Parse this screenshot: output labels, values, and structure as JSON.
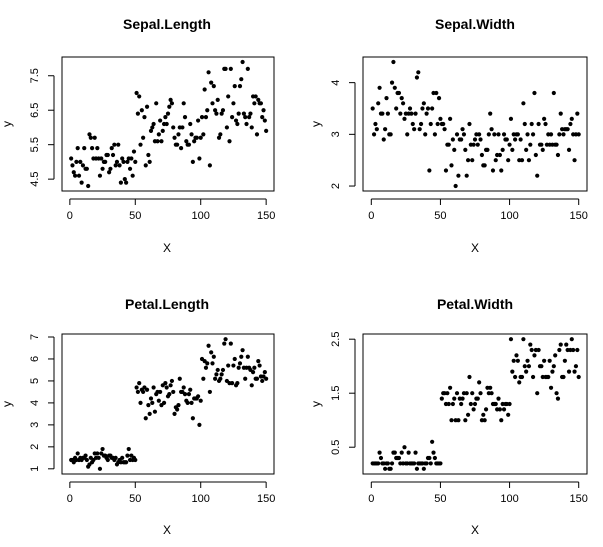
{
  "chart_data": [
    {
      "type": "scatter",
      "title": "Sepal.Length",
      "xlabel": "X",
      "ylabel": "y",
      "xlim": [
        0,
        150
      ],
      "ylim": [
        4.3,
        7.9
      ],
      "xticks": [
        0,
        50,
        100,
        150
      ],
      "yticks": [
        4.5,
        5.5,
        6.5,
        7.5
      ],
      "grid": false,
      "x": [
        1,
        2,
        3,
        4,
        5,
        6,
        7,
        8,
        9,
        10,
        11,
        12,
        13,
        14,
        15,
        16,
        17,
        18,
        19,
        20,
        21,
        22,
        23,
        24,
        25,
        26,
        27,
        28,
        29,
        30,
        31,
        32,
        33,
        34,
        35,
        36,
        37,
        38,
        39,
        40,
        41,
        42,
        43,
        44,
        45,
        46,
        47,
        48,
        49,
        50,
        51,
        52,
        53,
        54,
        55,
        56,
        57,
        58,
        59,
        60,
        61,
        62,
        63,
        64,
        65,
        66,
        67,
        68,
        69,
        70,
        71,
        72,
        73,
        74,
        75,
        76,
        77,
        78,
        79,
        80,
        81,
        82,
        83,
        84,
        85,
        86,
        87,
        88,
        89,
        90,
        91,
        92,
        93,
        94,
        95,
        96,
        97,
        98,
        99,
        100,
        101,
        102,
        103,
        104,
        105,
        106,
        107,
        108,
        109,
        110,
        111,
        112,
        113,
        114,
        115,
        116,
        117,
        118,
        119,
        120,
        121,
        122,
        123,
        124,
        125,
        126,
        127,
        128,
        129,
        130,
        131,
        132,
        133,
        134,
        135,
        136,
        137,
        138,
        139,
        140,
        141,
        142,
        143,
        144,
        145,
        146,
        147,
        148,
        149,
        150
      ],
      "y": [
        5.1,
        4.9,
        4.7,
        4.6,
        5.0,
        5.4,
        4.6,
        5.0,
        4.4,
        4.9,
        5.4,
        4.8,
        4.8,
        4.3,
        5.8,
        5.7,
        5.4,
        5.1,
        5.7,
        5.1,
        5.4,
        5.1,
        4.6,
        5.1,
        4.8,
        5.0,
        5.0,
        5.2,
        5.2,
        4.7,
        4.8,
        5.4,
        5.2,
        5.5,
        4.9,
        5.0,
        5.5,
        4.9,
        4.4,
        5.1,
        5.0,
        4.5,
        4.4,
        5.0,
        5.1,
        4.8,
        5.1,
        4.6,
        5.3,
        5.0,
        7.0,
        6.4,
        6.9,
        5.5,
        6.5,
        5.7,
        6.3,
        4.9,
        6.6,
        5.2,
        5.0,
        5.9,
        6.0,
        6.1,
        5.6,
        6.7,
        5.6,
        5.8,
        6.2,
        5.6,
        5.9,
        6.1,
        6.3,
        6.1,
        6.4,
        6.6,
        6.8,
        6.7,
        6.0,
        5.7,
        5.5,
        5.5,
        5.8,
        6.0,
        5.4,
        6.0,
        6.7,
        6.3,
        5.6,
        5.5,
        5.5,
        6.1,
        5.8,
        5.0,
        5.6,
        5.7,
        5.7,
        6.2,
        5.1,
        5.7,
        6.3,
        5.8,
        7.1,
        6.3,
        6.5,
        7.6,
        4.9,
        7.3,
        6.7,
        7.2,
        6.5,
        6.4,
        6.8,
        5.7,
        5.8,
        6.4,
        6.5,
        7.7,
        7.7,
        6.0,
        6.9,
        5.6,
        7.7,
        6.3,
        6.7,
        7.2,
        6.2,
        6.1,
        6.4,
        7.2,
        7.4,
        7.9,
        6.4,
        6.3,
        6.1,
        7.7,
        6.3,
        6.4,
        6.0,
        6.9,
        6.7,
        6.9,
        5.8,
        6.8,
        6.7,
        6.7,
        6.3,
        6.5,
        6.2,
        5.9
      ]
    },
    {
      "type": "scatter",
      "title": "Sepal.Width",
      "xlabel": "X",
      "ylabel": "y",
      "xlim": [
        0,
        150
      ],
      "ylim": [
        2.0,
        4.4
      ],
      "xticks": [
        0,
        50,
        100,
        150
      ],
      "yticks": [
        2.0,
        3.0,
        4.0
      ],
      "grid": false,
      "x": [
        1,
        2,
        3,
        4,
        5,
        6,
        7,
        8,
        9,
        10,
        11,
        12,
        13,
        14,
        15,
        16,
        17,
        18,
        19,
        20,
        21,
        22,
        23,
        24,
        25,
        26,
        27,
        28,
        29,
        30,
        31,
        32,
        33,
        34,
        35,
        36,
        37,
        38,
        39,
        40,
        41,
        42,
        43,
        44,
        45,
        46,
        47,
        48,
        49,
        50,
        51,
        52,
        53,
        54,
        55,
        56,
        57,
        58,
        59,
        60,
        61,
        62,
        63,
        64,
        65,
        66,
        67,
        68,
        69,
        70,
        71,
        72,
        73,
        74,
        75,
        76,
        77,
        78,
        79,
        80,
        81,
        82,
        83,
        84,
        85,
        86,
        87,
        88,
        89,
        90,
        91,
        92,
        93,
        94,
        95,
        96,
        97,
        98,
        99,
        100,
        101,
        102,
        103,
        104,
        105,
        106,
        107,
        108,
        109,
        110,
        111,
        112,
        113,
        114,
        115,
        116,
        117,
        118,
        119,
        120,
        121,
        122,
        123,
        124,
        125,
        126,
        127,
        128,
        129,
        130,
        131,
        132,
        133,
        134,
        135,
        136,
        137,
        138,
        139,
        140,
        141,
        142,
        143,
        144,
        145,
        146,
        147,
        148,
        149,
        150
      ],
      "y": [
        3.5,
        3.0,
        3.2,
        3.1,
        3.6,
        3.9,
        3.4,
        3.4,
        2.9,
        3.1,
        3.7,
        3.4,
        3.0,
        3.0,
        4.0,
        4.4,
        3.9,
        3.5,
        3.8,
        3.8,
        3.4,
        3.7,
        3.6,
        3.3,
        3.4,
        3.0,
        3.4,
        3.5,
        3.4,
        3.2,
        3.1,
        3.4,
        4.1,
        4.2,
        3.1,
        3.2,
        3.5,
        3.6,
        3.0,
        3.4,
        3.5,
        2.3,
        3.2,
        3.5,
        3.8,
        3.0,
        3.8,
        3.2,
        3.7,
        3.3,
        3.2,
        3.2,
        3.1,
        2.3,
        2.8,
        2.8,
        3.3,
        2.4,
        2.9,
        2.7,
        2.0,
        3.0,
        2.2,
        2.9,
        2.9,
        3.1,
        3.0,
        2.7,
        2.2,
        2.5,
        3.2,
        2.8,
        2.5,
        2.8,
        2.9,
        3.0,
        2.8,
        3.0,
        2.9,
        2.6,
        2.4,
        2.4,
        2.7,
        2.7,
        3.0,
        3.4,
        3.1,
        2.3,
        3.0,
        2.5,
        2.6,
        3.0,
        2.6,
        2.3,
        2.7,
        3.0,
        2.9,
        2.9,
        2.5,
        2.8,
        3.3,
        2.7,
        3.0,
        2.9,
        3.0,
        3.0,
        2.5,
        2.9,
        2.5,
        3.6,
        3.2,
        2.7,
        3.0,
        2.5,
        2.8,
        3.2,
        3.0,
        3.8,
        2.6,
        2.2,
        3.2,
        2.8,
        2.8,
        2.7,
        3.3,
        3.2,
        2.8,
        3.0,
        2.8,
        3.0,
        2.8,
        3.8,
        2.8,
        2.8,
        2.6,
        3.0,
        3.4,
        3.1,
        3.0,
        3.1,
        3.1,
        3.1,
        2.7,
        3.2,
        3.3,
        3.0,
        2.5,
        3.0,
        3.4,
        3.0
      ]
    },
    {
      "type": "scatter",
      "title": "Petal.Length",
      "xlabel": "X",
      "ylabel": "y",
      "xlim": [
        0,
        150
      ],
      "ylim": [
        1.0,
        6.9
      ],
      "xticks": [
        0,
        50,
        100,
        150
      ],
      "yticks": [
        1,
        2,
        3,
        4,
        5,
        6,
        7
      ],
      "grid": false,
      "x": [
        1,
        2,
        3,
        4,
        5,
        6,
        7,
        8,
        9,
        10,
        11,
        12,
        13,
        14,
        15,
        16,
        17,
        18,
        19,
        20,
        21,
        22,
        23,
        24,
        25,
        26,
        27,
        28,
        29,
        30,
        31,
        32,
        33,
        34,
        35,
        36,
        37,
        38,
        39,
        40,
        41,
        42,
        43,
        44,
        45,
        46,
        47,
        48,
        49,
        50,
        51,
        52,
        53,
        54,
        55,
        56,
        57,
        58,
        59,
        60,
        61,
        62,
        63,
        64,
        65,
        66,
        67,
        68,
        69,
        70,
        71,
        72,
        73,
        74,
        75,
        76,
        77,
        78,
        79,
        80,
        81,
        82,
        83,
        84,
        85,
        86,
        87,
        88,
        89,
        90,
        91,
        92,
        93,
        94,
        95,
        96,
        97,
        98,
        99,
        100,
        101,
        102,
        103,
        104,
        105,
        106,
        107,
        108,
        109,
        110,
        111,
        112,
        113,
        114,
        115,
        116,
        117,
        118,
        119,
        120,
        121,
        122,
        123,
        124,
        125,
        126,
        127,
        128,
        129,
        130,
        131,
        132,
        133,
        134,
        135,
        136,
        137,
        138,
        139,
        140,
        141,
        142,
        143,
        144,
        145,
        146,
        147,
        148,
        149,
        150
      ],
      "y": [
        1.4,
        1.4,
        1.3,
        1.5,
        1.4,
        1.7,
        1.4,
        1.5,
        1.4,
        1.5,
        1.5,
        1.6,
        1.4,
        1.1,
        1.2,
        1.5,
        1.3,
        1.4,
        1.7,
        1.5,
        1.7,
        1.5,
        1.0,
        1.7,
        1.9,
        1.6,
        1.6,
        1.5,
        1.4,
        1.6,
        1.6,
        1.5,
        1.5,
        1.4,
        1.5,
        1.2,
        1.3,
        1.4,
        1.3,
        1.5,
        1.3,
        1.3,
        1.3,
        1.6,
        1.9,
        1.4,
        1.6,
        1.4,
        1.5,
        1.4,
        4.7,
        4.5,
        4.9,
        4.0,
        4.6,
        4.5,
        4.7,
        3.3,
        4.6,
        3.9,
        3.5,
        4.2,
        4.0,
        4.7,
        3.6,
        4.4,
        4.5,
        4.1,
        4.5,
        3.9,
        4.8,
        4.0,
        4.9,
        4.7,
        4.3,
        4.4,
        4.8,
        5.0,
        4.5,
        3.5,
        3.8,
        3.7,
        3.9,
        5.1,
        4.5,
        4.5,
        4.7,
        4.4,
        4.1,
        4.0,
        4.4,
        4.6,
        4.0,
        3.3,
        4.2,
        4.2,
        4.2,
        4.3,
        3.0,
        4.1,
        6.0,
        5.1,
        5.9,
        5.6,
        5.8,
        6.6,
        4.5,
        6.3,
        5.8,
        6.1,
        5.1,
        5.3,
        5.5,
        5.0,
        5.1,
        5.3,
        5.5,
        6.7,
        6.9,
        5.0,
        5.7,
        4.9,
        6.7,
        4.9,
        5.7,
        6.0,
        4.8,
        4.9,
        5.6,
        5.8,
        6.1,
        6.4,
        5.6,
        5.1,
        5.6,
        6.1,
        5.6,
        5.5,
        4.8,
        5.4,
        5.6,
        5.1,
        5.1,
        5.9,
        5.7,
        5.2,
        5.0,
        5.2,
        5.4,
        5.1
      ]
    },
    {
      "type": "scatter",
      "title": "Petal.Width",
      "xlabel": "X",
      "ylabel": "y",
      "xlim": [
        0,
        150
      ],
      "ylim": [
        0.1,
        2.5
      ],
      "xticks": [
        0,
        50,
        100,
        150
      ],
      "yticks": [
        0.5,
        1.5,
        2.5
      ],
      "grid": false,
      "x": [
        1,
        2,
        3,
        4,
        5,
        6,
        7,
        8,
        9,
        10,
        11,
        12,
        13,
        14,
        15,
        16,
        17,
        18,
        19,
        20,
        21,
        22,
        23,
        24,
        25,
        26,
        27,
        28,
        29,
        30,
        31,
        32,
        33,
        34,
        35,
        36,
        37,
        38,
        39,
        40,
        41,
        42,
        43,
        44,
        45,
        46,
        47,
        48,
        49,
        50,
        51,
        52,
        53,
        54,
        55,
        56,
        57,
        58,
        59,
        60,
        61,
        62,
        63,
        64,
        65,
        66,
        67,
        68,
        69,
        70,
        71,
        72,
        73,
        74,
        75,
        76,
        77,
        78,
        79,
        80,
        81,
        82,
        83,
        84,
        85,
        86,
        87,
        88,
        89,
        90,
        91,
        92,
        93,
        94,
        95,
        96,
        97,
        98,
        99,
        100,
        101,
        102,
        103,
        104,
        105,
        106,
        107,
        108,
        109,
        110,
        111,
        112,
        113,
        114,
        115,
        116,
        117,
        118,
        119,
        120,
        121,
        122,
        123,
        124,
        125,
        126,
        127,
        128,
        129,
        130,
        131,
        132,
        133,
        134,
        135,
        136,
        137,
        138,
        139,
        140,
        141,
        142,
        143,
        144,
        145,
        146,
        147,
        148,
        149,
        150
      ],
      "y": [
        0.2,
        0.2,
        0.2,
        0.2,
        0.2,
        0.4,
        0.3,
        0.2,
        0.2,
        0.1,
        0.2,
        0.2,
        0.1,
        0.1,
        0.2,
        0.4,
        0.4,
        0.3,
        0.3,
        0.3,
        0.2,
        0.4,
        0.2,
        0.5,
        0.2,
        0.2,
        0.4,
        0.2,
        0.2,
        0.2,
        0.2,
        0.4,
        0.1,
        0.2,
        0.2,
        0.2,
        0.2,
        0.1,
        0.2,
        0.2,
        0.3,
        0.3,
        0.2,
        0.6,
        0.4,
        0.3,
        0.2,
        0.2,
        0.2,
        0.2,
        1.4,
        1.5,
        1.5,
        1.3,
        1.5,
        1.3,
        1.6,
        1.0,
        1.3,
        1.4,
        1.0,
        1.5,
        1.0,
        1.4,
        1.3,
        1.4,
        1.5,
        1.0,
        1.5,
        1.1,
        1.8,
        1.3,
        1.5,
        1.2,
        1.3,
        1.4,
        1.4,
        1.7,
        1.5,
        1.0,
        1.1,
        1.0,
        1.2,
        1.6,
        1.5,
        1.6,
        1.5,
        1.3,
        1.3,
        1.3,
        1.2,
        1.4,
        1.2,
        1.0,
        1.3,
        1.2,
        1.3,
        1.3,
        1.1,
        1.3,
        2.5,
        1.9,
        2.1,
        1.8,
        2.2,
        2.1,
        1.7,
        1.8,
        1.8,
        2.5,
        2.0,
        1.9,
        2.1,
        2.0,
        2.4,
        2.3,
        1.8,
        2.2,
        2.3,
        1.5,
        2.3,
        2.0,
        2.0,
        1.8,
        2.1,
        1.8,
        1.8,
        1.8,
        2.1,
        1.6,
        1.9,
        2.0,
        2.2,
        1.5,
        1.4,
        2.3,
        2.4,
        1.8,
        1.8,
        2.1,
        2.4,
        2.3,
        1.9,
        2.3,
        2.5,
        2.3,
        1.9,
        2.0,
        2.3,
        1.8
      ]
    }
  ]
}
